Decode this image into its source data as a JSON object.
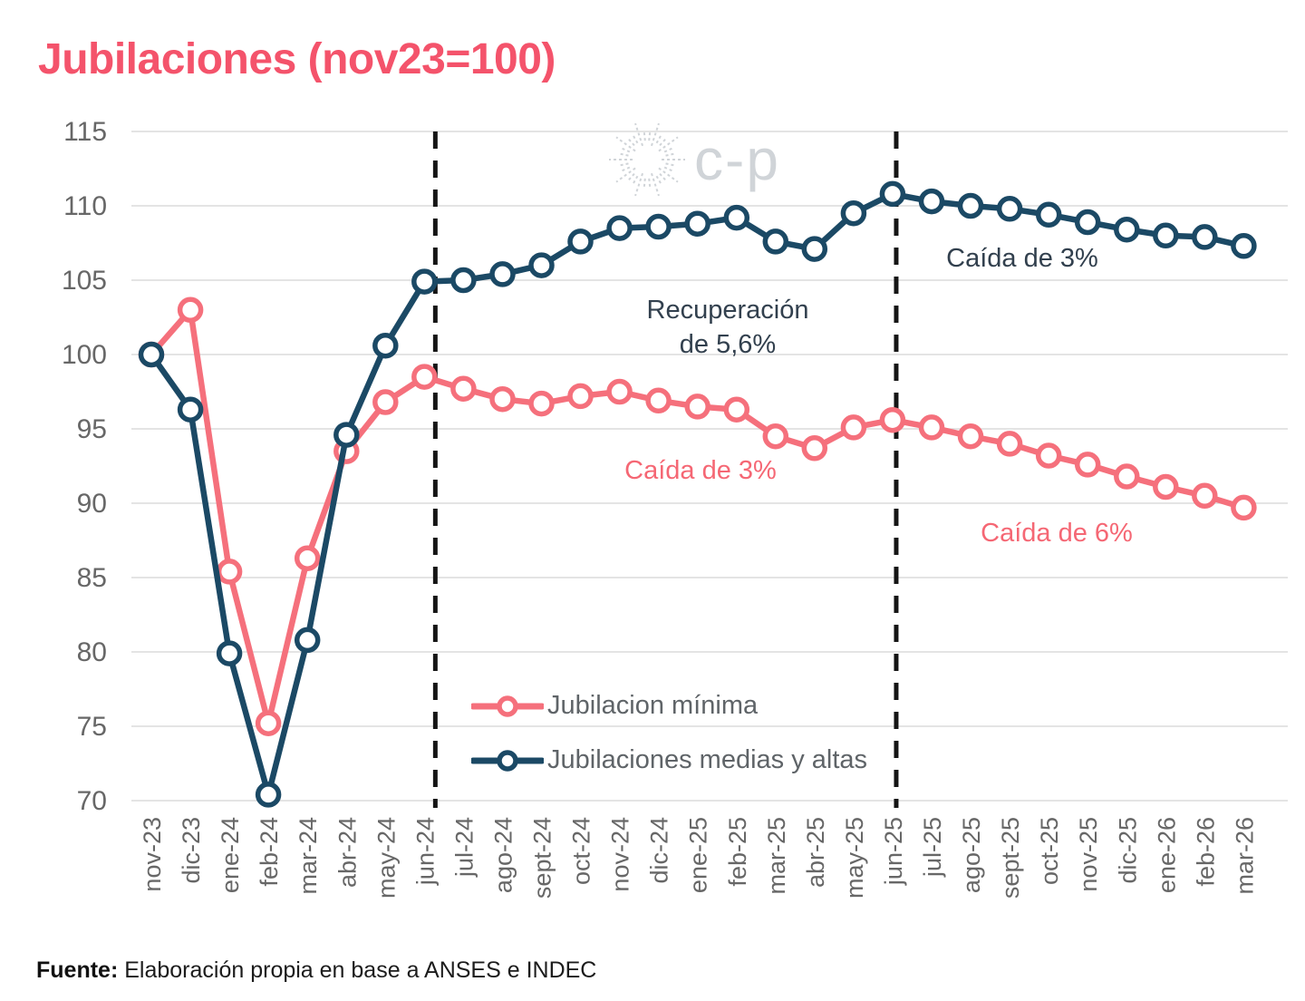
{
  "page": {
    "watermark": "c-p",
    "source_label": "Fuente:",
    "source_text": "Elaboración propia en base a ANSES e INDEC"
  },
  "colors": {
    "title": "#F4536B",
    "minima_line": "#F5707C",
    "medias_line": "#1B4965",
    "grid": "#DCDCDC",
    "axis_text": "#676767",
    "annotation_dark": "#32404E",
    "annotation_pink": "#F56774",
    "dashed_line": "#151515",
    "watermark": "#D0D4D8",
    "legend_text": "#5F6468",
    "marker_fill": "#FFFFFF"
  },
  "chart_data": {
    "type": "line",
    "title": "Jubilaciones (nov23=100)",
    "xlabel": "",
    "ylabel": "",
    "ylim": [
      70,
      115
    ],
    "yticks": [
      70,
      75,
      80,
      85,
      90,
      95,
      100,
      105,
      110,
      115
    ],
    "grid": "horizontal",
    "legend_position": "inside-bottom-center",
    "categories": [
      "nov-23",
      "dic-23",
      "ene-24",
      "feb-24",
      "mar-24",
      "abr-24",
      "may-24",
      "jun-24",
      "jul-24",
      "ago-24",
      "sept-24",
      "oct-24",
      "nov-24",
      "dic-24",
      "ene-25",
      "feb-25",
      "mar-25",
      "abr-25",
      "may-25",
      "jun-25",
      "jul-25",
      "ago-25",
      "sept-25",
      "oct-25",
      "nov-25",
      "dic-25",
      "ene-26",
      "feb-26",
      "mar-26"
    ],
    "series": [
      {
        "name": "Jubilacion mínima",
        "color": "#F5707C",
        "values": [
          100,
          103,
          85.4,
          75.2,
          86.3,
          93.5,
          96.8,
          98.5,
          97.7,
          97.0,
          96.7,
          97.2,
          97.5,
          96.9,
          96.5,
          96.3,
          94.5,
          93.7,
          95.1,
          95.6,
          95.1,
          94.5,
          94.0,
          93.2,
          92.6,
          91.8,
          91.1,
          90.5,
          89.7
        ]
      },
      {
        "name": "Jubilaciones medias y altas",
        "color": "#1B4965",
        "values": [
          100,
          96.3,
          79.9,
          70.4,
          80.8,
          94.6,
          100.6,
          104.9,
          105.0,
          105.4,
          106.0,
          107.6,
          108.5,
          108.6,
          108.8,
          109.2,
          107.6,
          107.1,
          109.5,
          110.8,
          110.3,
          110.0,
          109.8,
          109.4,
          108.9,
          108.4,
          108.0,
          107.9,
          107.3
        ]
      }
    ],
    "dashed_vlines": [
      "jun-24",
      "jun-25"
    ],
    "annotations": {
      "recovery": {
        "line1": "Recuperación",
        "line2": "de 5,6%"
      },
      "drop_medias": "Caída de 3%",
      "drop_minima_mid": "Caída de 3%",
      "drop_minima_end": "Caída de 6%"
    }
  }
}
